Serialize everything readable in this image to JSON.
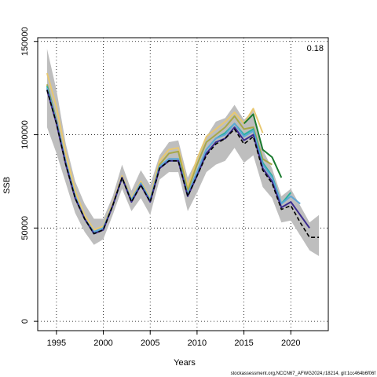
{
  "chart_data": {
    "type": "line",
    "xlabel": "Years",
    "ylabel": "SSB",
    "annotation": "0.18",
    "footer": "stockassessment.org,NCCN67_AFWG2024,r18214, git:1cc464b6f06f",
    "xlim": [
      1993,
      2024
    ],
    "ylim": [
      -5000,
      152000
    ],
    "x_ticks": [
      1995,
      2000,
      2005,
      2010,
      2015,
      2020
    ],
    "y_ticks": [
      0,
      50000,
      100000,
      150000
    ],
    "grid": true,
    "confidence_band": {
      "color": "#bebebe",
      "x": [
        1994,
        1995,
        1996,
        1997,
        1998,
        1999,
        2000,
        2001,
        2002,
        2003,
        2004,
        2005,
        2006,
        2007,
        2008,
        2009,
        2010,
        2011,
        2012,
        2013,
        2014,
        2015,
        2016,
        2017,
        2018,
        2019,
        2020,
        2021,
        2022,
        2023
      ],
      "lower": [
        104000,
        90000,
        74000,
        58000,
        48000,
        41000,
        44000,
        57000,
        71000,
        59000,
        66000,
        57000,
        76000,
        80000,
        80000,
        59000,
        69000,
        80000,
        84000,
        86000,
        93000,
        85000,
        89000,
        72000,
        66000,
        53000,
        54000,
        46000,
        38000,
        35000
      ],
      "upper": [
        146000,
        124000,
        95000,
        75000,
        63000,
        55000,
        55000,
        67000,
        84000,
        70000,
        81000,
        73000,
        89000,
        96000,
        97000,
        77000,
        87000,
        99000,
        107000,
        109000,
        116000,
        108000,
        113000,
        92000,
        82000,
        67000,
        71000,
        62000,
        53000,
        57000
      ]
    },
    "series": [
      {
        "color": "#000000",
        "dashed": true,
        "x": [
          1994,
          1995,
          1996,
          1997,
          1998,
          1999,
          2000,
          2001,
          2002,
          2003,
          2004,
          2005,
          2006,
          2007,
          2008,
          2009,
          2010,
          2011,
          2012,
          2013,
          2014,
          2015,
          2016,
          2017,
          2018,
          2019,
          2020,
          2021,
          2022,
          2023
        ],
        "values": [
          124000,
          106000,
          84000,
          66000,
          55000,
          47000,
          49000,
          62000,
          77000,
          64000,
          73000,
          64000,
          82000,
          86000,
          86000,
          67000,
          78000,
          89000,
          95000,
          98000,
          103000,
          95000,
          99000,
          81000,
          74000,
          60000,
          62000,
          53000,
          45000,
          45000
        ]
      },
      {
        "color": "#3a2a8e",
        "x": [
          1994,
          1995,
          1996,
          1997,
          1998,
          1999,
          2000,
          2001,
          2002,
          2003,
          2004,
          2005,
          2006,
          2007,
          2008,
          2009,
          2010,
          2011,
          2012,
          2013,
          2014,
          2015,
          2016,
          2017,
          2018,
          2019,
          2020,
          2021,
          2022
        ],
        "values": [
          124000,
          106000,
          84000,
          66000,
          55000,
          47000,
          49000,
          62000,
          77000,
          64000,
          73000,
          64000,
          82000,
          86000,
          86000,
          67000,
          78000,
          90000,
          96000,
          98000,
          104000,
          97000,
          100000,
          82000,
          75000,
          61000,
          64000,
          57000,
          50000
        ]
      },
      {
        "color": "#5fa8d8",
        "x": [
          1994,
          1995,
          1996,
          1997,
          1998,
          1999,
          2000,
          2001,
          2002,
          2003,
          2004,
          2005,
          2006,
          2007,
          2008,
          2009,
          2010,
          2011,
          2012,
          2013,
          2014,
          2015,
          2016,
          2017,
          2018,
          2019,
          2020,
          2021
        ],
        "values": [
          125000,
          107000,
          85000,
          67000,
          55000,
          48000,
          50000,
          62000,
          77000,
          65000,
          74000,
          65000,
          83000,
          87000,
          87000,
          68000,
          80000,
          92000,
          98000,
          100000,
          106000,
          99000,
          102000,
          84000,
          77000,
          63000,
          67000,
          63000
        ]
      },
      {
        "color": "#2ab0a0",
        "x": [
          1994,
          1995,
          1996,
          1997,
          1998,
          1999,
          2000,
          2001,
          2002,
          2003,
          2004,
          2005,
          2006,
          2007,
          2008,
          2009,
          2010,
          2011,
          2012,
          2013,
          2014,
          2015,
          2016,
          2017,
          2018,
          2019,
          2020
        ],
        "values": [
          126000,
          107000,
          85000,
          67000,
          55000,
          47000,
          50000,
          62000,
          77000,
          65000,
          74000,
          65000,
          83000,
          87000,
          87000,
          68000,
          80000,
          92000,
          98000,
          101000,
          106000,
          100000,
          103000,
          85000,
          78000,
          63000,
          69000
        ]
      },
      {
        "color": "#1a7a2e",
        "x": [
          2015,
          2016,
          2017,
          2018,
          2019
        ],
        "values": [
          106000,
          111000,
          92000,
          88000,
          77000
        ]
      },
      {
        "color": "#a8a848",
        "x": [
          1994,
          1995,
          1996,
          1997,
          1998,
          1999,
          2000,
          2001,
          2002,
          2003,
          2004,
          2005,
          2006,
          2007,
          2008,
          2009,
          2010,
          2011,
          2012,
          2013,
          2014,
          2015,
          2016,
          2017,
          2018
        ],
        "values": [
          127000,
          108000,
          85000,
          67000,
          55000,
          47000,
          50000,
          62000,
          77000,
          65000,
          74000,
          65000,
          84000,
          90000,
          91000,
          70000,
          84000,
          96000,
          100000,
          104000,
          110000,
          103000,
          104000,
          87000,
          84000
        ]
      },
      {
        "color": "#e8c870",
        "x": [
          1994,
          1995,
          1996,
          1997,
          1998,
          1999,
          2000,
          2001,
          2002,
          2003,
          2004,
          2005,
          2006,
          2007,
          2008,
          2009,
          2010,
          2011,
          2012,
          2013,
          2014,
          2015,
          2016,
          2017
        ],
        "values": [
          133000,
          115000,
          90000,
          70000,
          57000,
          49000,
          51000,
          63000,
          78000,
          66000,
          75000,
          66000,
          86000,
          92000,
          93000,
          72000,
          87000,
          99000,
          103000,
          107000,
          112000,
          106000,
          114000,
          101000
        ]
      }
    ]
  }
}
